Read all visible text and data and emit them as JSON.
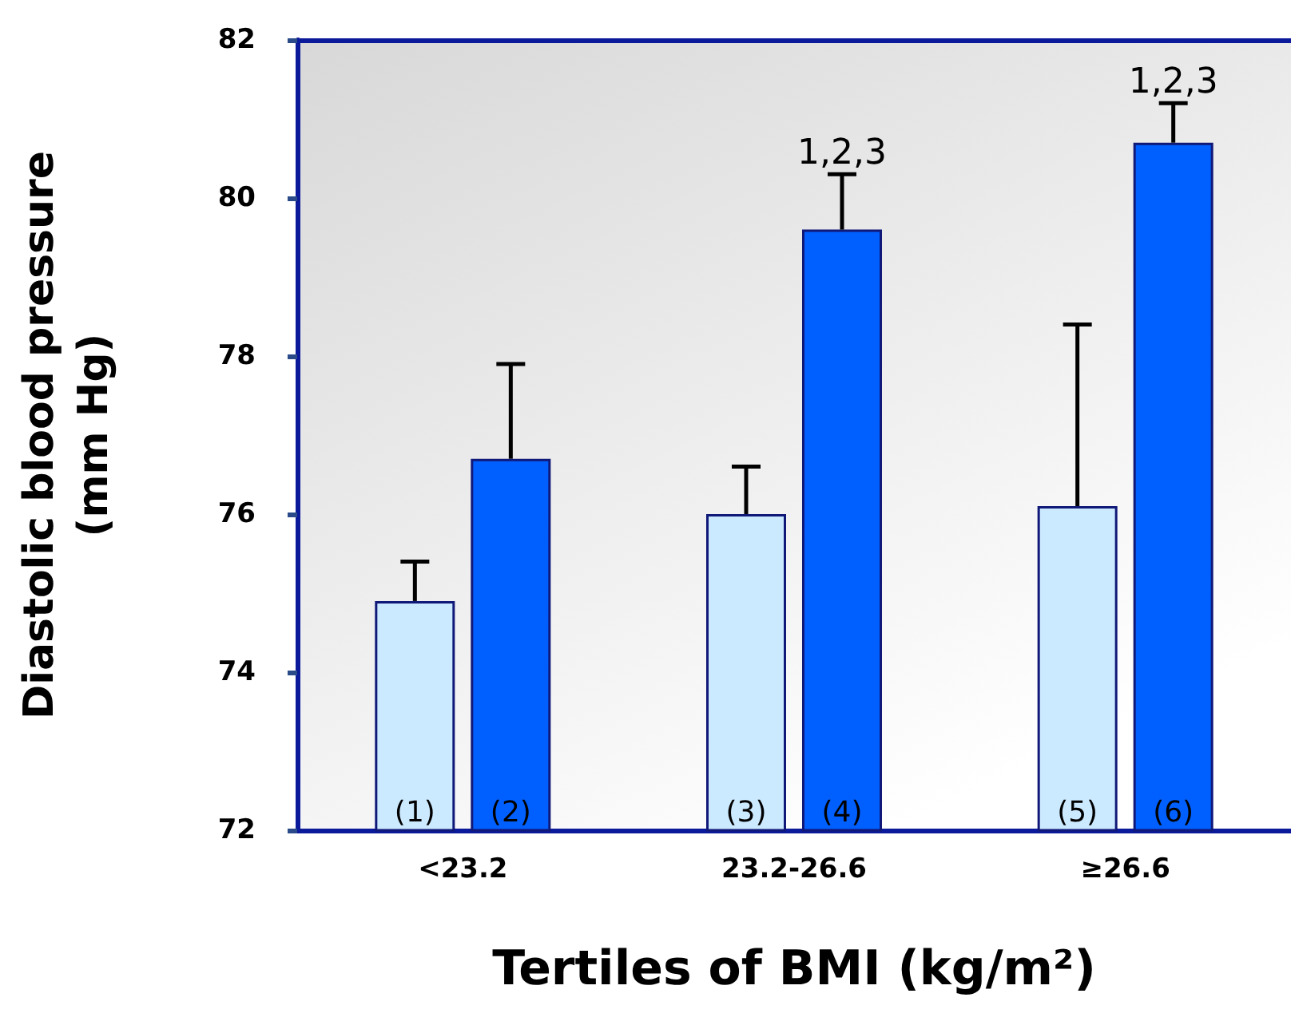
{
  "chart_data": {
    "type": "bar",
    "xlabel": "Tertiles of BMI (kg/m²)",
    "ylabel": "Diastolic blood pressure (mm Hg)",
    "categories": [
      "<23.2",
      "23.2-26.6",
      "≥26.6"
    ],
    "series": [
      {
        "color": "#cceaff",
        "values": [
          74.9,
          76.0,
          76.1
        ],
        "errors": [
          [
            74.9,
            75.4
          ],
          [
            76.0,
            76.6
          ],
          [
            76.1,
            78.4
          ]
        ]
      },
      {
        "color": "#0060ff",
        "values": [
          76.7,
          79.6,
          80.7
        ],
        "errors": [
          [
            76.7,
            77.9
          ],
          [
            79.6,
            80.3
          ],
          [
            80.7,
            81.2
          ]
        ]
      }
    ],
    "annotations": [
      "(1)",
      "(2)",
      "(3)",
      "(4)",
      "(5)",
      "(6)",
      "1,2,3",
      "1,2,3"
    ],
    "ylim": [
      72,
      82
    ],
    "yticks": [
      72,
      74,
      76,
      78,
      80,
      82
    ],
    "grid": false
  }
}
